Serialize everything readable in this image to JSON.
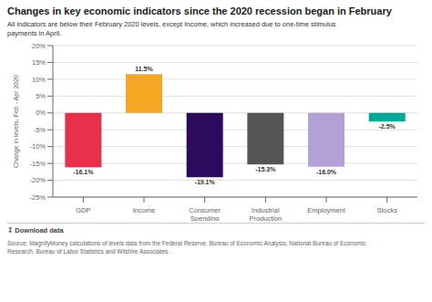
{
  "chart_data": {
    "type": "bar",
    "title": "Changes in key economic indicators since the 2020 recession began in February",
    "subtitle": "All indicators are below their February 2020 levels, except Income, which increased due to one-time stimulus\npayments in April.",
    "categories": [
      "GDP",
      "Income",
      "Consumer Spending",
      "Industrial Production",
      "Employment",
      "Stocks"
    ],
    "values": [
      -16.1,
      11.5,
      -19.1,
      -15.3,
      -16.0,
      -2.5
    ],
    "value_labels": [
      "-16.1%",
      "11.5%",
      "-19.1%",
      "-15.3%",
      "-16.0%",
      "-2.5%"
    ],
    "data_labels": true,
    "colors": [
      "#e8304a",
      "#f5a623",
      "#2d0a5e",
      "#555555",
      "#b3a0d4",
      "#00a896"
    ],
    "ylabel": "Change in levels, Feb - Apr 2020",
    "ylim": [
      -25,
      20
    ],
    "yticks": [
      {
        "value": -25,
        "label": "-25%"
      },
      {
        "value": -20,
        "label": "-20%"
      },
      {
        "value": -15,
        "label": "-15%"
      },
      {
        "value": -10,
        "label": "-10%"
      },
      {
        "value": -5,
        "label": "-5%"
      },
      {
        "value": 0,
        "label": "0%"
      },
      {
        "value": 5,
        "label": "5%"
      },
      {
        "value": 10,
        "label": "10%"
      },
      {
        "value": 15,
        "label": "15%"
      },
      {
        "value": 20,
        "label": "20%"
      }
    ],
    "grid": true,
    "annotations": [
      "↧ Download data",
      "Source: MagnifyMoney calculations of levels data from the Federal Reserve, Bureau of Economic Analysis, National Bureau of Economic\nResearch, Bureau of Labor Statistics and Wilshire Associates."
    ]
  }
}
